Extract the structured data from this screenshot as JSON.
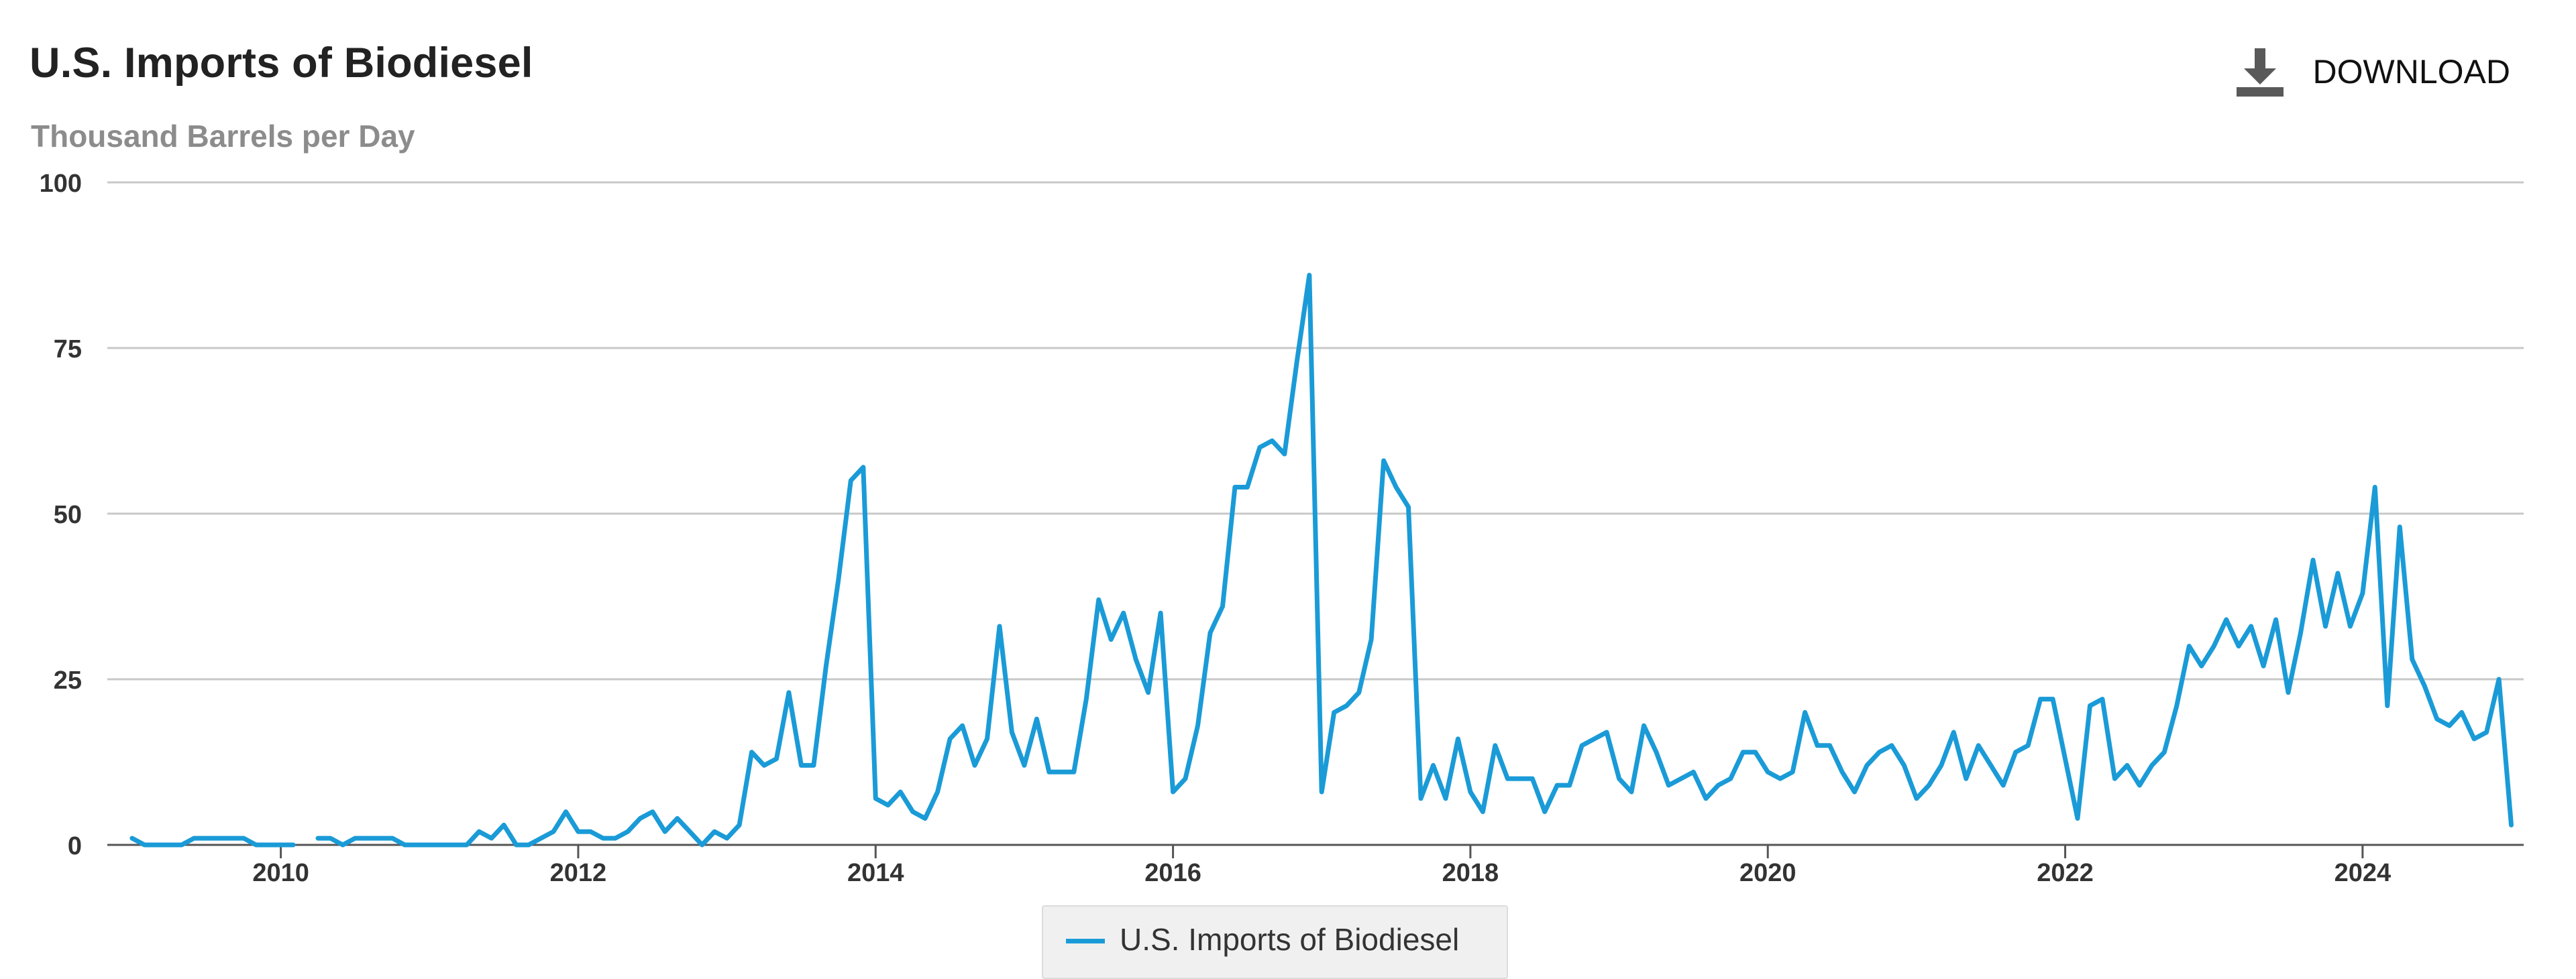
{
  "header": {
    "title": "U.S. Imports of Biodiesel",
    "subtitle": "Thousand Barrels per Day",
    "download_label": "DOWNLOAD"
  },
  "icons": {
    "download": "download-icon"
  },
  "colors": {
    "series": "#1a9bd7",
    "grid": "#c8c8c8",
    "axis": "#555555"
  },
  "chart_data": {
    "type": "line",
    "title": "U.S. Imports of Biodiesel",
    "ylabel": "Thousand Barrels per Day",
    "ylim": [
      0,
      100
    ],
    "yticks": [
      "0",
      "25",
      "50",
      "75",
      "100"
    ],
    "xticks": [
      "2010",
      "2012",
      "2014",
      "2016",
      "2018",
      "2020",
      "2022",
      "2024"
    ],
    "xlim": [
      "2008-11",
      "2025-02"
    ],
    "grid": true,
    "legend": "bottom-center",
    "series": [
      {
        "name": "U.S. Imports of Biodiesel",
        "points": [
          [
            "2009-01",
            1
          ],
          [
            "2009-02",
            0
          ],
          [
            "2009-03",
            0
          ],
          [
            "2009-04",
            0
          ],
          [
            "2009-05",
            0
          ],
          [
            "2009-06",
            1
          ],
          [
            "2009-07",
            1
          ],
          [
            "2009-08",
            1
          ],
          [
            "2009-09",
            1
          ],
          [
            "2009-10",
            1
          ],
          [
            "2009-11",
            0
          ],
          [
            "2009-12",
            0
          ],
          [
            "2010-01",
            0
          ],
          [
            "2010-02",
            0
          ],
          [
            "2010-04",
            1
          ],
          [
            "2010-05",
            1
          ],
          [
            "2010-06",
            0
          ],
          [
            "2010-07",
            1
          ],
          [
            "2010-08",
            1
          ],
          [
            "2010-09",
            1
          ],
          [
            "2010-10",
            1
          ],
          [
            "2010-11",
            0
          ],
          [
            "2010-12",
            0
          ],
          [
            "2011-01",
            0
          ],
          [
            "2011-02",
            0
          ],
          [
            "2011-03",
            0
          ],
          [
            "2011-04",
            0
          ],
          [
            "2011-05",
            2
          ],
          [
            "2011-06",
            1
          ],
          [
            "2011-07",
            3
          ],
          [
            "2011-08",
            0
          ],
          [
            "2011-09",
            0
          ],
          [
            "2011-10",
            1
          ],
          [
            "2011-11",
            2
          ],
          [
            "2011-12",
            5
          ],
          [
            "2012-01",
            2
          ],
          [
            "2012-02",
            2
          ],
          [
            "2012-03",
            1
          ],
          [
            "2012-04",
            1
          ],
          [
            "2012-05",
            2
          ],
          [
            "2012-06",
            4
          ],
          [
            "2012-07",
            5
          ],
          [
            "2012-08",
            2
          ],
          [
            "2012-09",
            4
          ],
          [
            "2012-10",
            2
          ],
          [
            "2012-11",
            0
          ],
          [
            "2012-12",
            2
          ],
          [
            "2013-01",
            1
          ],
          [
            "2013-02",
            3
          ],
          [
            "2013-03",
            14
          ],
          [
            "2013-04",
            12
          ],
          [
            "2013-05",
            13
          ],
          [
            "2013-06",
            23
          ],
          [
            "2013-07",
            12
          ],
          [
            "2013-08",
            12
          ],
          [
            "2013-09",
            27
          ],
          [
            "2013-10",
            40
          ],
          [
            "2013-11",
            55
          ],
          [
            "2013-12",
            57
          ],
          [
            "2014-01",
            7
          ],
          [
            "2014-02",
            6
          ],
          [
            "2014-03",
            8
          ],
          [
            "2014-04",
            5
          ],
          [
            "2014-05",
            4
          ],
          [
            "2014-06",
            8
          ],
          [
            "2014-07",
            16
          ],
          [
            "2014-08",
            18
          ],
          [
            "2014-09",
            12
          ],
          [
            "2014-10",
            16
          ],
          [
            "2014-11",
            33
          ],
          [
            "2014-12",
            17
          ],
          [
            "2015-01",
            12
          ],
          [
            "2015-02",
            19
          ],
          [
            "2015-03",
            11
          ],
          [
            "2015-04",
            11
          ],
          [
            "2015-05",
            11
          ],
          [
            "2015-06",
            22
          ],
          [
            "2015-07",
            37
          ],
          [
            "2015-08",
            31
          ],
          [
            "2015-09",
            35
          ],
          [
            "2015-10",
            28
          ],
          [
            "2015-11",
            23
          ],
          [
            "2015-12",
            35
          ],
          [
            "2016-01",
            8
          ],
          [
            "2016-02",
            10
          ],
          [
            "2016-03",
            18
          ],
          [
            "2016-04",
            32
          ],
          [
            "2016-05",
            36
          ],
          [
            "2016-06",
            54
          ],
          [
            "2016-07",
            54
          ],
          [
            "2016-08",
            60
          ],
          [
            "2016-09",
            61
          ],
          [
            "2016-10",
            59
          ],
          [
            "2016-11",
            73
          ],
          [
            "2016-12",
            86
          ],
          [
            "2017-01",
            8
          ],
          [
            "2017-02",
            20
          ],
          [
            "2017-03",
            21
          ],
          [
            "2017-04",
            23
          ],
          [
            "2017-05",
            31
          ],
          [
            "2017-06",
            58
          ],
          [
            "2017-07",
            54
          ],
          [
            "2017-08",
            51
          ],
          [
            "2017-09",
            7
          ],
          [
            "2017-10",
            12
          ],
          [
            "2017-11",
            7
          ],
          [
            "2017-12",
            16
          ],
          [
            "2018-01",
            8
          ],
          [
            "2018-02",
            5
          ],
          [
            "2018-03",
            15
          ],
          [
            "2018-04",
            10
          ],
          [
            "2018-05",
            10
          ],
          [
            "2018-06",
            10
          ],
          [
            "2018-07",
            5
          ],
          [
            "2018-08",
            9
          ],
          [
            "2018-09",
            9
          ],
          [
            "2018-10",
            15
          ],
          [
            "2018-11",
            16
          ],
          [
            "2018-12",
            17
          ],
          [
            "2019-01",
            10
          ],
          [
            "2019-02",
            8
          ],
          [
            "2019-03",
            18
          ],
          [
            "2019-04",
            14
          ],
          [
            "2019-05",
            9
          ],
          [
            "2019-06",
            10
          ],
          [
            "2019-07",
            11
          ],
          [
            "2019-08",
            7
          ],
          [
            "2019-09",
            9
          ],
          [
            "2019-10",
            10
          ],
          [
            "2019-11",
            14
          ],
          [
            "2019-12",
            14
          ],
          [
            "2020-01",
            11
          ],
          [
            "2020-02",
            10
          ],
          [
            "2020-03",
            11
          ],
          [
            "2020-04",
            20
          ],
          [
            "2020-05",
            15
          ],
          [
            "2020-06",
            15
          ],
          [
            "2020-07",
            11
          ],
          [
            "2020-08",
            8
          ],
          [
            "2020-09",
            12
          ],
          [
            "2020-10",
            14
          ],
          [
            "2020-11",
            15
          ],
          [
            "2020-12",
            12
          ],
          [
            "2021-01",
            7
          ],
          [
            "2021-02",
            9
          ],
          [
            "2021-03",
            12
          ],
          [
            "2021-04",
            17
          ],
          [
            "2021-05",
            10
          ],
          [
            "2021-06",
            15
          ],
          [
            "2021-07",
            12
          ],
          [
            "2021-08",
            9
          ],
          [
            "2021-09",
            14
          ],
          [
            "2021-10",
            15
          ],
          [
            "2021-11",
            22
          ],
          [
            "2021-12",
            22
          ],
          [
            "2022-01",
            13
          ],
          [
            "2022-02",
            4
          ],
          [
            "2022-03",
            21
          ],
          [
            "2022-04",
            22
          ],
          [
            "2022-05",
            10
          ],
          [
            "2022-06",
            12
          ],
          [
            "2022-07",
            9
          ],
          [
            "2022-08",
            12
          ],
          [
            "2022-09",
            14
          ],
          [
            "2022-10",
            21
          ],
          [
            "2022-11",
            30
          ],
          [
            "2022-12",
            27
          ],
          [
            "2023-01",
            30
          ],
          [
            "2023-02",
            34
          ],
          [
            "2023-03",
            30
          ],
          [
            "2023-04",
            33
          ],
          [
            "2023-05",
            27
          ],
          [
            "2023-06",
            34
          ],
          [
            "2023-07",
            23
          ],
          [
            "2023-08",
            32
          ],
          [
            "2023-09",
            43
          ],
          [
            "2023-10",
            33
          ],
          [
            "2023-11",
            41
          ],
          [
            "2023-12",
            33
          ],
          [
            "2024-01",
            38
          ],
          [
            "2024-02",
            54
          ],
          [
            "2024-03",
            21
          ],
          [
            "2024-04",
            48
          ],
          [
            "2024-05",
            28
          ],
          [
            "2024-06",
            24
          ],
          [
            "2024-07",
            19
          ],
          [
            "2024-08",
            18
          ],
          [
            "2024-09",
            20
          ],
          [
            "2024-10",
            16
          ],
          [
            "2024-11",
            17
          ],
          [
            "2024-12",
            25
          ],
          [
            "2025-01",
            3
          ]
        ]
      }
    ]
  }
}
